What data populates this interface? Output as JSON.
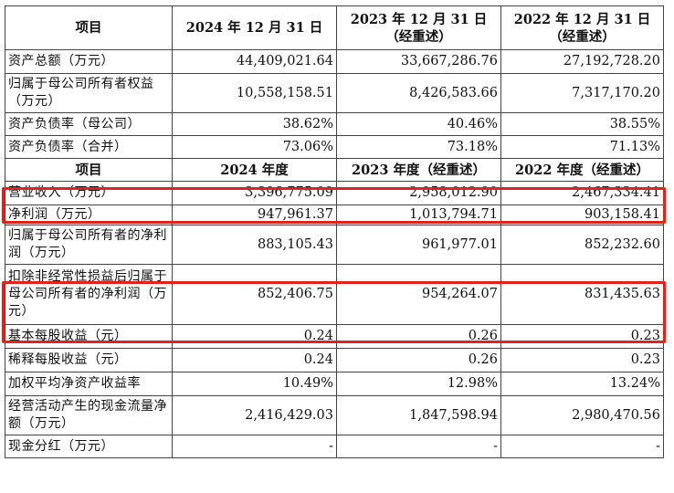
{
  "header1": [
    "项目",
    "2024 年 12 月 31 日",
    "2023 年 12 月 31 日（经重述）",
    "2022 年 12 月 31 日（经重述）"
  ],
  "rows1": [
    {
      "label": "资产总额（万元）",
      "v1": "44,409,021.64",
      "v2": "33,667,286.76",
      "v3": "27,192,728.20"
    },
    {
      "label": "归属于母公司所有者权益（万元）",
      "v1": "10,558,158.51",
      "v2": "8,426,583.66",
      "v3": "7,317,170.20"
    },
    {
      "label": "资产负债率（母公司）",
      "v1": "38.62%",
      "v2": "40.46%",
      "v3": "38.55%"
    },
    {
      "label": "资产负债率（合并）",
      "v1": "73.06%",
      "v2": "73.18%",
      "v3": "71.13%"
    }
  ],
  "header2": [
    "项目",
    "2024 年度",
    "2023 年度（经重述）",
    "2022 年度（经重述）"
  ],
  "rows2": [
    {
      "label": "营业收入（万元）",
      "v1": "3,396,775.09",
      "v2": "2,958,012.90",
      "v3": "2,467,334.41"
    },
    {
      "label": "净利润（万元）",
      "v1": "947,961.37",
      "v2": "1,013,794.71",
      "v3": "903,158.41"
    },
    {
      "label": "归属于母公司所有者的净利润（万元）",
      "v1": "883,105.43",
      "v2": "961,977.01",
      "v3": "852,232.60"
    },
    {
      "label": "扣除非经常性损益后归属于母公司所有者的净利润（万元）",
      "v1": "852,406.75",
      "v2": "954,264.07",
      "v3": "831,435.63"
    },
    {
      "label": "基本每股收益（元）",
      "v1": "0.24",
      "v2": "0.26",
      "v3": "0.23"
    },
    {
      "label": "稀释每股收益（元）",
      "v1": "0.24",
      "v2": "0.26",
      "v3": "0.23"
    },
    {
      "label": "加权平均净资产收益率",
      "v1": "10.49%",
      "v2": "12.98%",
      "v3": "13.24%"
    },
    {
      "label": "经营活动产生的现金流量净额（万元）",
      "v1": "2,416,429.03",
      "v2": "1,847,598.94",
      "v3": "2,980,470.56"
    },
    {
      "label": "现金分红（万元）",
      "v1": "-",
      "v2": "-",
      "v3": "-"
    }
  ],
  "highlight_color": "#e0241b"
}
